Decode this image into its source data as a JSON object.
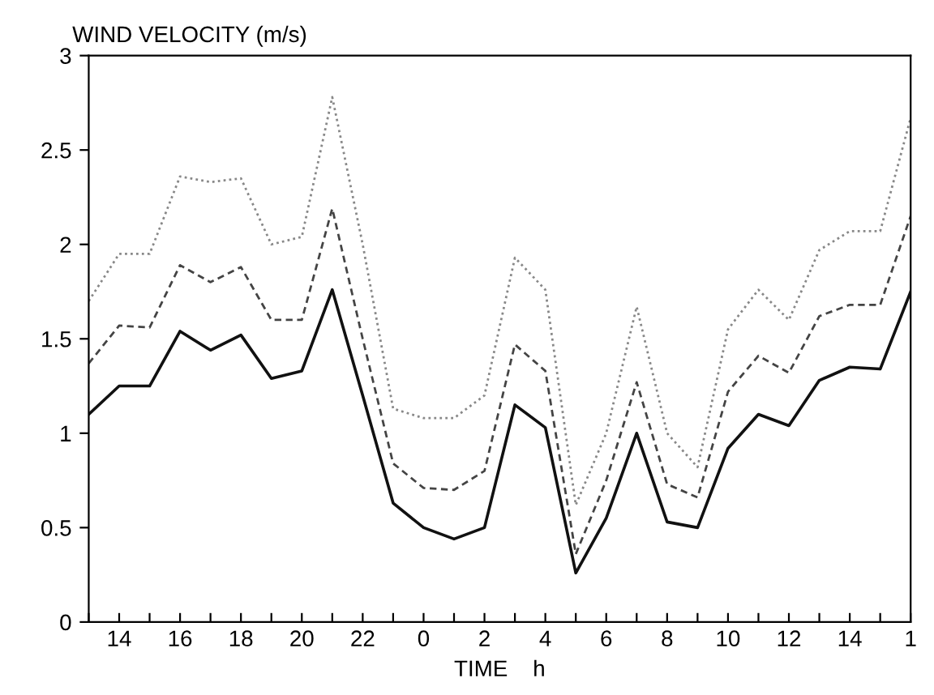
{
  "chart_data": {
    "type": "line",
    "title": "WIND VELOCITY (m/s)",
    "xlabel": "TIME    h",
    "categories": [
      null,
      "14",
      null,
      "16",
      null,
      "18",
      null,
      "20",
      null,
      "22",
      null,
      "0",
      null,
      "2",
      null,
      "4",
      null,
      "6",
      null,
      "8",
      null,
      "10",
      null,
      "12",
      null,
      "14",
      null,
      "1"
    ],
    "series": [
      {
        "color": "#111111",
        "line_style": "solid",
        "values": [
          1.1,
          1.25,
          1.25,
          1.54,
          1.44,
          1.52,
          1.29,
          1.33,
          1.76,
          1.2,
          0.63,
          0.5,
          0.44,
          0.5,
          1.15,
          1.03,
          0.26,
          0.55,
          1.0,
          0.53,
          0.5,
          0.92,
          1.1,
          1.04,
          1.28,
          1.35,
          1.34,
          1.75
        ]
      },
      {
        "color": "#444444",
        "line_style": "dashed",
        "values": [
          1.37,
          1.57,
          1.56,
          1.89,
          1.8,
          1.88,
          1.6,
          1.6,
          2.19,
          1.5,
          0.84,
          0.71,
          0.7,
          0.8,
          1.47,
          1.33,
          0.36,
          0.75,
          1.27,
          0.73,
          0.66,
          1.22,
          1.41,
          1.32,
          1.62,
          1.68,
          1.68,
          2.15
        ]
      },
      {
        "color": "#888888",
        "line_style": "dotted",
        "values": [
          1.7,
          1.95,
          1.95,
          2.36,
          2.33,
          2.35,
          2.0,
          2.04,
          2.78,
          2.0,
          1.13,
          1.08,
          1.08,
          1.2,
          1.93,
          1.76,
          0.62,
          1.0,
          1.67,
          1.0,
          0.82,
          1.55,
          1.76,
          1.6,
          1.97,
          2.07,
          2.07,
          2.67
        ]
      }
    ],
    "ylim": [
      0,
      3
    ],
    "yticks": [
      0,
      0.5,
      1,
      1.5,
      2,
      2.5,
      3
    ],
    "grid": false,
    "legend": false,
    "marker": "none"
  }
}
